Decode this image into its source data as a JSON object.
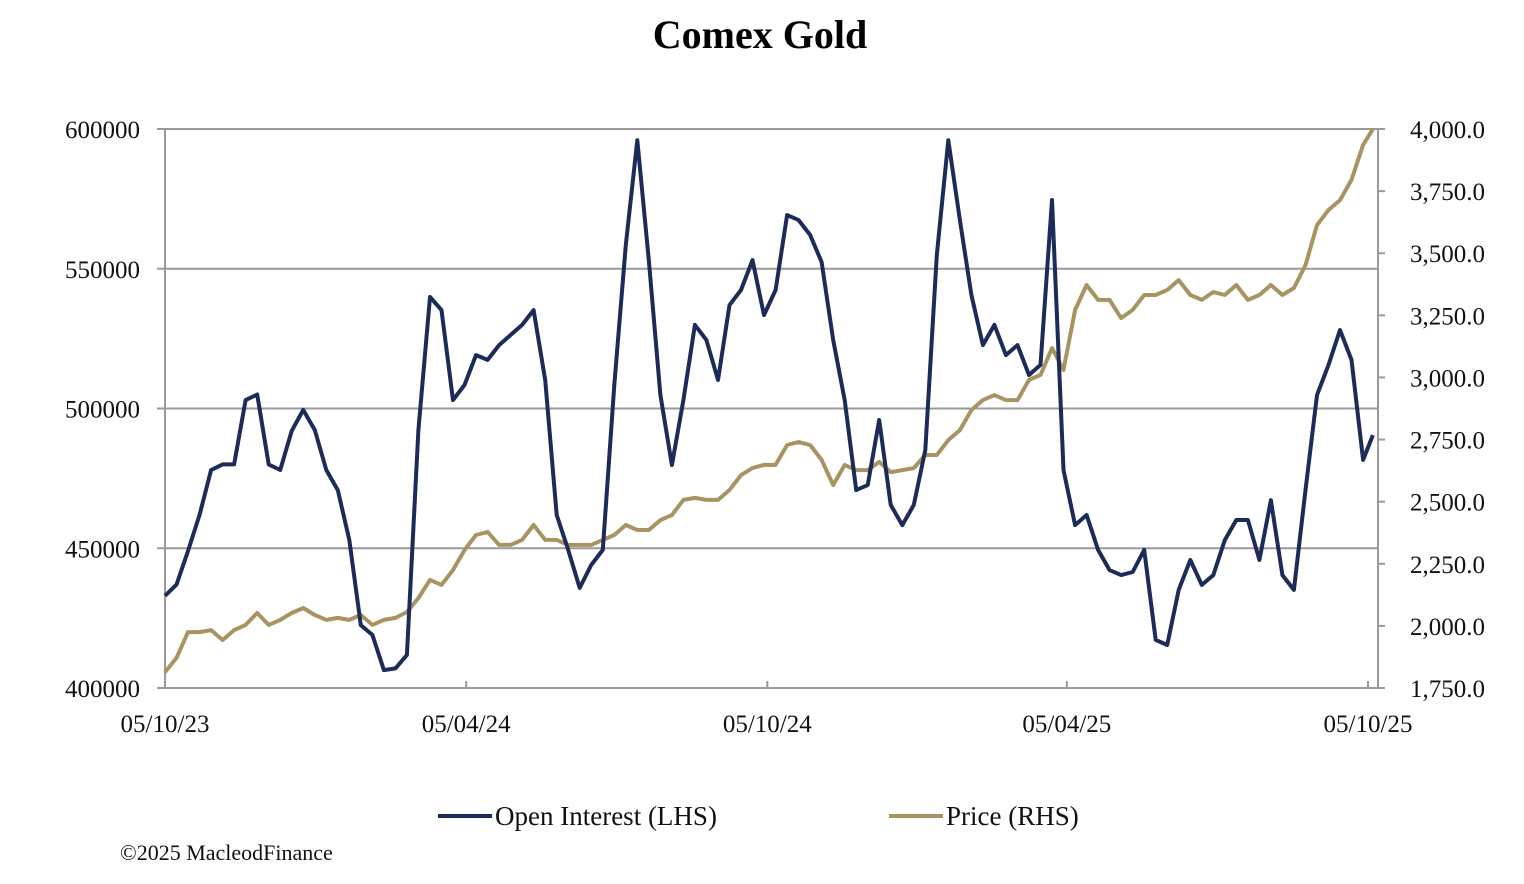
{
  "chart_data": {
    "type": "line",
    "title": "Comex Gold",
    "copyright": "©2025 MacleodFinance",
    "colors": {
      "open_interest": "#1c2b57",
      "price": "#a89462",
      "grid": "#9a9a9a"
    },
    "grid": true,
    "legend_position": "bottom",
    "x_ticks": [
      "05/10/23",
      "05/04/24",
      "05/10/24",
      "05/04/25",
      "05/10/25"
    ],
    "x_tick_dates": [
      "2023-10-05",
      "2024-04-05",
      "2024-10-05",
      "2025-04-05",
      "2025-10-05"
    ],
    "y_left": {
      "ylim": [
        400000,
        600000
      ],
      "ticks": [
        "400000",
        "450000",
        "500000",
        "550000",
        "600000"
      ],
      "tick_values": [
        400000,
        450000,
        500000,
        550000,
        600000
      ]
    },
    "y_right": {
      "ylim": [
        1750,
        4000
      ],
      "ticks": [
        "1,750.0",
        "2,000.0",
        "2,250.0",
        "2,500.0",
        "2,750.0",
        "3,000.0",
        "3,250.0",
        "3,500.0",
        "3,750.0",
        "4,000.0"
      ],
      "tick_values": [
        1750,
        2000,
        2250,
        2500,
        2750,
        3000,
        3250,
        3500,
        3750,
        4000
      ]
    },
    "x": [
      "2023-10-05",
      "2023-10-12",
      "2023-10-19",
      "2023-10-26",
      "2023-11-02",
      "2023-11-09",
      "2023-11-16",
      "2023-11-23",
      "2023-11-30",
      "2023-12-07",
      "2023-12-14",
      "2023-12-21",
      "2023-12-28",
      "2024-01-04",
      "2024-01-11",
      "2024-01-18",
      "2024-01-25",
      "2024-02-01",
      "2024-02-08",
      "2024-02-15",
      "2024-02-22",
      "2024-02-29",
      "2024-03-07",
      "2024-03-14",
      "2024-03-21",
      "2024-03-28",
      "2024-04-04",
      "2024-04-11",
      "2024-04-18",
      "2024-04-25",
      "2024-05-02",
      "2024-05-09",
      "2024-05-16",
      "2024-05-23",
      "2024-05-30",
      "2024-06-06",
      "2024-06-13",
      "2024-06-20",
      "2024-06-27",
      "2024-07-04",
      "2024-07-11",
      "2024-07-18",
      "2024-07-25",
      "2024-08-01",
      "2024-08-08",
      "2024-08-15",
      "2024-08-22",
      "2024-08-29",
      "2024-09-05",
      "2024-09-12",
      "2024-09-19",
      "2024-09-26",
      "2024-10-03",
      "2024-10-10",
      "2024-10-17",
      "2024-10-24",
      "2024-10-31",
      "2024-11-07",
      "2024-11-14",
      "2024-11-21",
      "2024-11-28",
      "2024-12-05",
      "2024-12-12",
      "2024-12-19",
      "2024-12-26",
      "2025-01-02",
      "2025-01-09",
      "2025-01-16",
      "2025-01-23",
      "2025-01-30",
      "2025-02-06",
      "2025-02-13",
      "2025-02-20",
      "2025-02-27",
      "2025-03-06",
      "2025-03-13",
      "2025-03-20",
      "2025-03-27",
      "2025-04-03",
      "2025-04-10",
      "2025-04-17",
      "2025-04-24",
      "2025-05-01",
      "2025-05-08",
      "2025-05-15",
      "2025-05-22",
      "2025-05-29",
      "2025-06-05",
      "2025-06-12",
      "2025-06-19",
      "2025-06-26",
      "2025-07-03",
      "2025-07-10",
      "2025-07-17",
      "2025-07-24",
      "2025-07-31",
      "2025-08-07",
      "2025-08-14",
      "2025-08-21",
      "2025-08-28",
      "2025-09-04",
      "2025-09-11",
      "2025-09-18",
      "2025-09-25",
      "2025-10-02",
      "2025-10-08"
    ],
    "series": [
      {
        "name": "Open Interest (LHS)",
        "axis": "left",
        "values": [
          433000,
          437000,
          449000,
          462000,
          478000,
          480000,
          480000,
          503000,
          505000,
          480000,
          478000,
          492000,
          499500,
          492300,
          478000,
          470800,
          453000,
          422500,
          419000,
          406400,
          407000,
          411800,
          492300,
          539900,
          535200,
          503000,
          508400,
          519100,
          517400,
          522700,
          526300,
          529900,
          535200,
          510200,
          461900,
          449400,
          435800,
          444000,
          449400,
          508400,
          558500,
          596000,
          553100,
          504800,
          479800,
          503000,
          529900,
          524500,
          510200,
          537000,
          542400,
          553100,
          533400,
          542400,
          569200,
          567400,
          562100,
          552400,
          524500,
          503000,
          470800,
          472600,
          495900,
          465500,
          458300,
          465500,
          485100,
          554900,
          596000,
          567400,
          540600,
          522700,
          529900,
          519100,
          522700,
          512000,
          515600,
          574600,
          478000,
          458300,
          461900,
          449400,
          442200,
          440400,
          441500,
          449400,
          417200,
          415400,
          435100,
          445800,
          436900,
          440400,
          452900,
          460100,
          460100,
          445800,
          467200,
          440400,
          435100,
          470800,
          504800,
          515600,
          528100,
          517400,
          481600,
          490500
        ]
      },
      {
        "name": "Price (RHS)",
        "axis": "right",
        "values": [
          1814,
          1871,
          1975,
          1975,
          1983,
          1943,
          1983,
          2004,
          2052,
          2004,
          2024,
          2052,
          2072,
          2044,
          2024,
          2032,
          2024,
          2044,
          2004,
          2024,
          2032,
          2056,
          2112,
          2185,
          2165,
          2225,
          2305,
          2366,
          2378,
          2326,
          2326,
          2346,
          2406,
          2346,
          2346,
          2326,
          2326,
          2326,
          2346,
          2366,
          2406,
          2386,
          2386,
          2426,
          2446,
          2507,
          2515,
          2507,
          2507,
          2547,
          2607,
          2635,
          2648,
          2648,
          2728,
          2740,
          2728,
          2668,
          2567,
          2648,
          2627,
          2627,
          2660,
          2619,
          2627,
          2635,
          2688,
          2688,
          2748,
          2788,
          2869,
          2909,
          2929,
          2909,
          2909,
          2990,
          3010,
          3118,
          3030,
          3272,
          3372,
          3312,
          3312,
          3239,
          3272,
          3332,
          3332,
          3352,
          3392,
          3332,
          3312,
          3344,
          3332,
          3372,
          3312,
          3332,
          3372,
          3332,
          3360,
          3452,
          3613,
          3674,
          3714,
          3795,
          3936,
          4000
        ]
      }
    ]
  }
}
